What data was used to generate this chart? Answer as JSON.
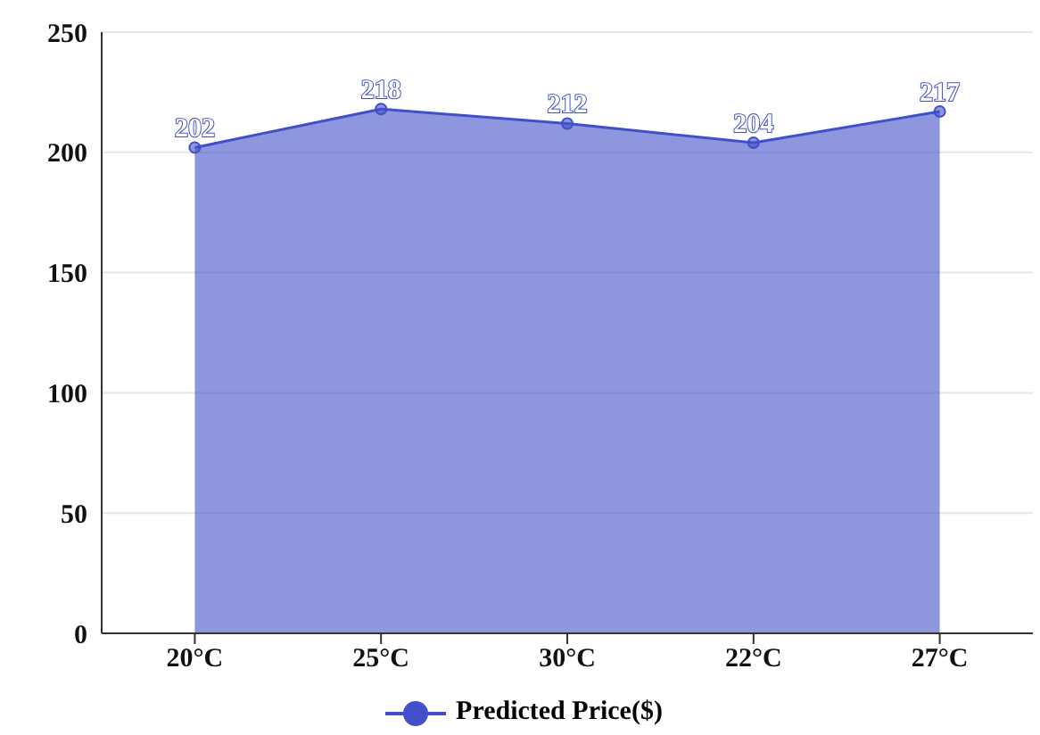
{
  "chart_data": {
    "type": "area",
    "categories": [
      "20°C",
      "25°C",
      "30°C",
      "22°C",
      "27°C"
    ],
    "series": [
      {
        "name": "Predicted Price($)",
        "color": "#4150c8",
        "values": [
          202,
          218,
          212,
          204,
          217
        ]
      }
    ],
    "ylim": [
      0,
      250
    ],
    "yticks": [
      0,
      50,
      100,
      150,
      200,
      250
    ],
    "grid": "y",
    "legend": "bottom",
    "marker": "circle",
    "data_labels": true
  }
}
